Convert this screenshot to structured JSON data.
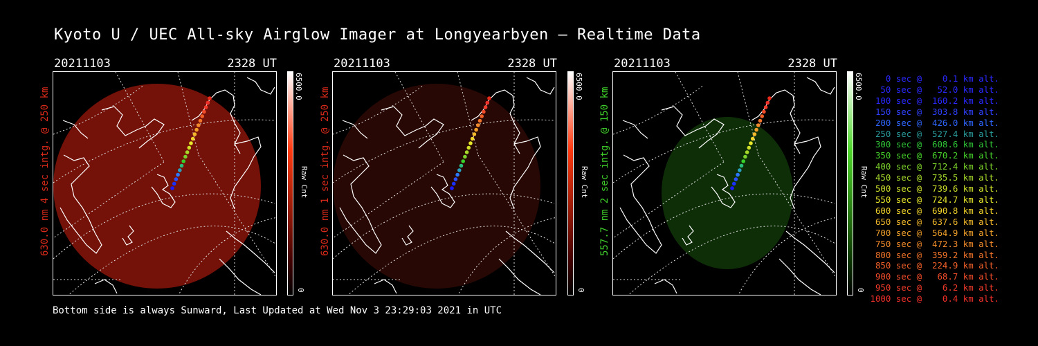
{
  "title": "Kyoto U / UEC All-sky Airglow Imager at Longyearbyen — Realtime Data",
  "footer": "Bottom side is always Sunward, Last Updated at Wed Nov  3 23:29:03 2021 in UTC",
  "panels": [
    {
      "date": "20211103",
      "time": "2328 UT",
      "label": "630.0 nm 4 sec intg. @ 250 km",
      "label_color": "#d82a1a",
      "glow_color": "#7a1208",
      "glow_opacity": 0.95,
      "cbar_max": "6500.0",
      "cbar_unit": "Raw Cnt",
      "cbar_min": "0",
      "cbar_color": "#ff3a10"
    },
    {
      "date": "20211103",
      "time": "2328 UT",
      "label": "630.0 nm 1 sec intg. @ 250 km",
      "label_color": "#d82a1a",
      "glow_color": "#2a0804",
      "glow_opacity": 0.95,
      "cbar_max": "6500.0",
      "cbar_unit": "Raw Cnt",
      "cbar_min": "0",
      "cbar_color": "#ff3a10"
    },
    {
      "date": "20211103",
      "time": "2328 UT",
      "label": "557.7 nm 2 sec intg. @ 150 km",
      "label_color": "#3fcf2a",
      "glow_color": "#0f3008",
      "glow_opacity": 0.95,
      "cbar_max": "6500.0",
      "cbar_unit": "Raw Cnt",
      "cbar_min": "0",
      "cbar_color": "#4dd62a"
    }
  ],
  "legend": [
    {
      "text": "   0 sec @    0.1 km alt.",
      "color": "#2a28ff"
    },
    {
      "text": "  50 sec @   52.0 km alt.",
      "color": "#2a28ff"
    },
    {
      "text": " 100 sec @  160.2 km alt.",
      "color": "#2a28ff"
    },
    {
      "text": " 150 sec @  303.8 km alt.",
      "color": "#3040ff"
    },
    {
      "text": " 200 sec @  426.0 km alt.",
      "color": "#2f66ff"
    },
    {
      "text": " 250 sec @  527.4 km alt.",
      "color": "#2a9a9a"
    },
    {
      "text": " 300 sec @  608.6 km alt.",
      "color": "#2fc436"
    },
    {
      "text": " 350 sec @  670.2 km alt.",
      "color": "#46d22a"
    },
    {
      "text": " 400 sec @  712.4 km alt.",
      "color": "#7cd22a"
    },
    {
      "text": " 450 sec @  735.5 km alt.",
      "color": "#a6d92a"
    },
    {
      "text": " 500 sec @  739.6 km alt.",
      "color": "#cfe02a"
    },
    {
      "text": " 550 sec @  724.7 km alt.",
      "color": "#e8e82a"
    },
    {
      "text": " 600 sec @  690.8 km alt.",
      "color": "#f0d22a"
    },
    {
      "text": " 650 sec @  637.6 km alt.",
      "color": "#f2b82a"
    },
    {
      "text": " 700 sec @  564.9 km alt.",
      "color": "#f2a02a"
    },
    {
      "text": " 750 sec @  472.3 km alt.",
      "color": "#f28a2a"
    },
    {
      "text": " 800 sec @  359.2 km alt.",
      "color": "#f2742a"
    },
    {
      "text": " 850 sec @  224.9 km alt.",
      "color": "#f2602a"
    },
    {
      "text": " 900 sec @   68.7 km alt.",
      "color": "#f24c2a"
    },
    {
      "text": " 950 sec @    6.2 km alt.",
      "color": "#f23a2a"
    },
    {
      "text": "1000 sec @    0.4 km alt.",
      "color": "#f2302a"
    }
  ]
}
